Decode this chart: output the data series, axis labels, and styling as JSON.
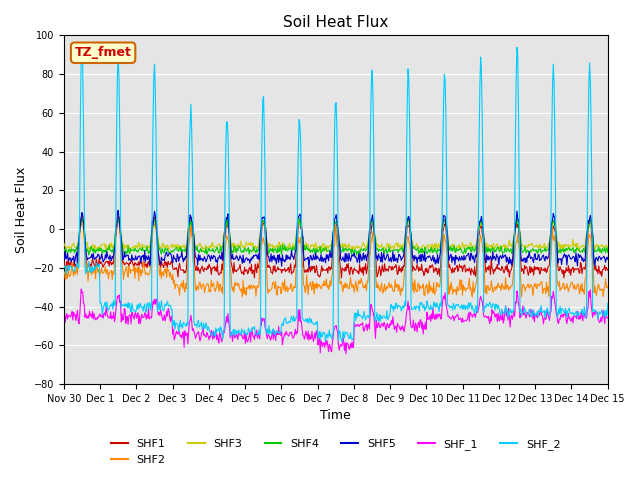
{
  "title": "Soil Heat Flux",
  "ylabel": "Soil Heat Flux",
  "xlabel": "Time",
  "ylim": [
    -80,
    100
  ],
  "series": {
    "SHF1": {
      "color": "#cc0000",
      "lw": 0.8
    },
    "SHF2": {
      "color": "#ff8800",
      "lw": 0.8
    },
    "SHF3": {
      "color": "#cccc00",
      "lw": 0.8
    },
    "SHF4": {
      "color": "#00cc00",
      "lw": 0.8
    },
    "SHF5": {
      "color": "#0000cc",
      "lw": 0.8
    },
    "SHF_1": {
      "color": "#ff00ff",
      "lw": 0.8
    },
    "SHF_2": {
      "color": "#00ccff",
      "lw": 0.8
    }
  },
  "annotation_box": {
    "text": "TZ_fmet",
    "facecolor": "#ffffcc",
    "edgecolor": "#cc6600",
    "textcolor": "#cc0000",
    "fontsize": 9,
    "fontweight": "bold"
  },
  "legend_entries": [
    "SHF1",
    "SHF2",
    "SHF3",
    "SHF4",
    "SHF5",
    "SHF_1",
    "SHF_2"
  ],
  "xtick_labels": [
    "Nov 30",
    "Dec 1",
    "Dec 2",
    "Dec 3",
    "Dec 4",
    "Dec 5",
    "Dec 6",
    "Dec 7",
    "Dec 8",
    "Dec 9",
    "Dec 10",
    "Dec 11",
    "Dec 12",
    "Dec 13",
    "Dec 14",
    "Dec 15"
  ],
  "grid_color": "#ffffff",
  "plot_bg": "#e5e5e5",
  "title_fontsize": 11,
  "axis_fontsize": 9,
  "tick_fontsize": 7
}
